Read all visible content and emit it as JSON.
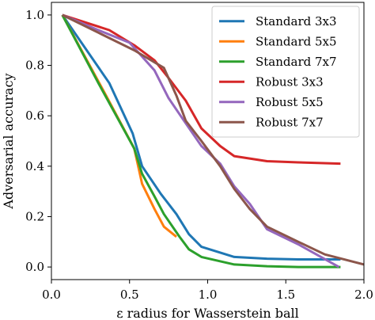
{
  "chart_data": {
    "type": "line",
    "title": "",
    "xlabel": "ε radius for Wasserstein ball",
    "ylabel": "Adversarial accuracy",
    "xlim": [
      0.0,
      2.0
    ],
    "ylim": [
      -0.05,
      1.05
    ],
    "xticks": [
      0.0,
      0.5,
      1.0,
      1.5,
      2.0
    ],
    "xtick_labels": [
      "0.0",
      "0.5",
      "1.0",
      "1.5",
      "2.0"
    ],
    "yticks": [
      0.0,
      0.2,
      0.4,
      0.6,
      0.8,
      1.0
    ],
    "ytick_labels": [
      "0.0",
      "0.2",
      "0.4",
      "0.6",
      "0.8",
      "1.0"
    ],
    "grid": false,
    "legend_position": "top-right",
    "series": [
      {
        "name": "Standard 3x3",
        "color": "#1f77b4",
        "x": [
          0.07,
          0.37,
          0.52,
          0.58,
          0.7,
          0.8,
          0.88,
          0.96,
          1.17,
          1.38,
          1.58,
          1.85
        ],
        "y": [
          1.0,
          0.73,
          0.53,
          0.4,
          0.29,
          0.21,
          0.13,
          0.08,
          0.04,
          0.033,
          0.03,
          0.03
        ]
      },
      {
        "name": "Standard 5x5",
        "color": "#ff7f0e",
        "x": [
          0.07,
          0.35,
          0.53,
          0.58,
          0.66,
          0.72,
          0.8
        ],
        "y": [
          1.0,
          0.68,
          0.47,
          0.33,
          0.23,
          0.16,
          0.12
        ]
      },
      {
        "name": "Standard 7x7",
        "color": "#2ca02c",
        "x": [
          0.07,
          0.3,
          0.53,
          0.58,
          0.66,
          0.72,
          0.82,
          0.88,
          0.96,
          1.17,
          1.38,
          1.58,
          1.85
        ],
        "y": [
          1.0,
          0.73,
          0.47,
          0.37,
          0.28,
          0.21,
          0.12,
          0.07,
          0.04,
          0.01,
          0.003,
          0.0,
          0.0
        ]
      },
      {
        "name": "Robust 3x3",
        "color": "#d62728",
        "x": [
          0.07,
          0.37,
          0.53,
          0.66,
          0.75,
          0.86,
          0.96,
          1.08,
          1.17,
          1.38,
          1.58,
          1.85
        ],
        "y": [
          1.0,
          0.94,
          0.88,
          0.82,
          0.75,
          0.66,
          0.55,
          0.48,
          0.44,
          0.42,
          0.415,
          0.41
        ]
      },
      {
        "name": "Robust 5x5",
        "color": "#9467bd",
        "x": [
          0.07,
          0.3,
          0.5,
          0.66,
          0.75,
          0.86,
          0.96,
          1.08,
          1.17,
          1.27,
          1.38,
          1.58,
          1.84
        ],
        "y": [
          1.0,
          0.94,
          0.89,
          0.78,
          0.67,
          0.57,
          0.48,
          0.41,
          0.32,
          0.25,
          0.15,
          0.09,
          0.0
        ]
      },
      {
        "name": "Robust 7x7",
        "color": "#8c564b",
        "x": [
          0.07,
          0.3,
          0.53,
          0.72,
          0.8,
          0.86,
          0.96,
          1.08,
          1.17,
          1.27,
          1.38,
          1.58,
          1.75,
          2.0
        ],
        "y": [
          1.0,
          0.93,
          0.86,
          0.79,
          0.68,
          0.58,
          0.5,
          0.4,
          0.31,
          0.23,
          0.16,
          0.1,
          0.05,
          0.01
        ]
      }
    ]
  }
}
